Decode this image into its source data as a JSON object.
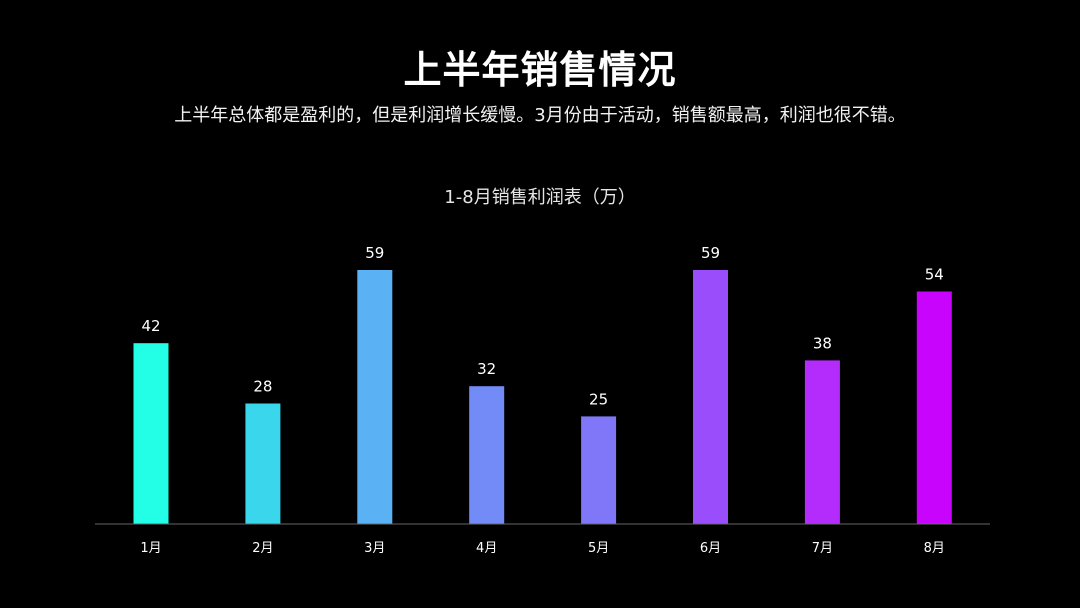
{
  "header": {
    "title": "上半年销售情况",
    "subtitle": "上半年总体都是盈利的，但是利润增长缓慢。3月份由于活动，销售额最高，利润也很不错。"
  },
  "chart_data": {
    "type": "bar",
    "title": "1-8月销售利润表（万）",
    "xlabel": "",
    "ylabel": "",
    "categories": [
      "1月",
      "2月",
      "3月",
      "4月",
      "5月",
      "6月",
      "7月",
      "8月"
    ],
    "values": [
      42,
      28,
      59,
      32,
      25,
      59,
      38,
      54
    ],
    "ylim": [
      0,
      59
    ],
    "grid": false,
    "legend": "none",
    "data_labels": true,
    "colors": [
      "#22ffe6",
      "#3ad6ec",
      "#5ab2f5",
      "#728bf6",
      "#7f77f7",
      "#9a4dfb",
      "#b32cfb",
      "#c904fc"
    ],
    "axis_color": "#666666",
    "label_color": "#ffffff"
  }
}
